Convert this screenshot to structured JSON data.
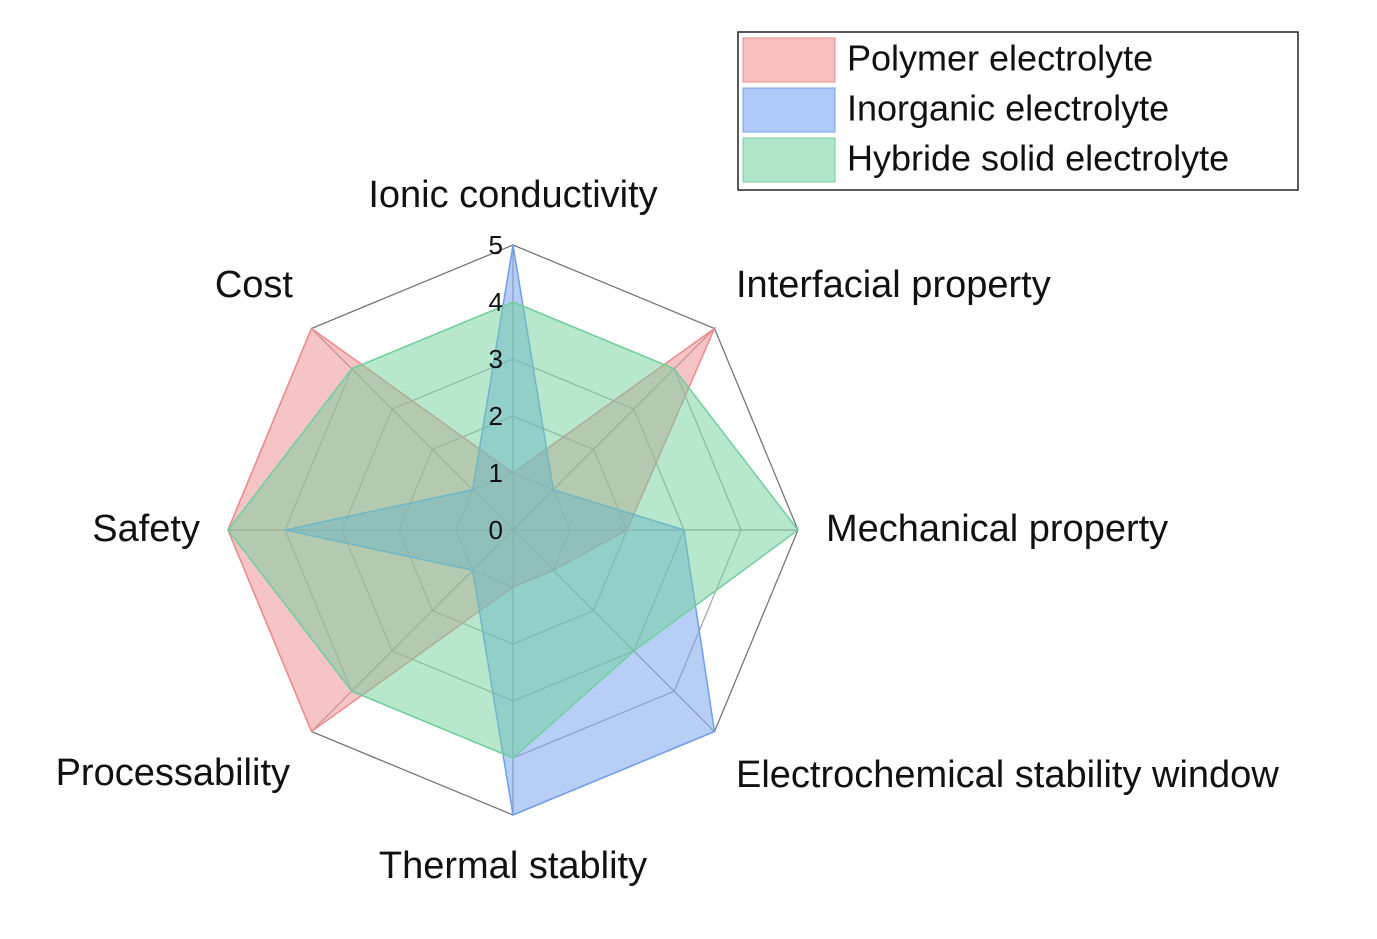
{
  "chart_data": {
    "type": "radar",
    "categories": [
      "Ionic conductivity",
      "Interfacial property",
      "Mechanical property",
      "Electrochemical stability window",
      "Thermal stablity",
      "Processability",
      "Safety",
      "Cost"
    ],
    "series": [
      {
        "name": "Polymer electrolyte",
        "color": "#ef8a8c",
        "values": [
          1,
          5,
          2,
          1,
          1,
          5,
          5,
          5
        ]
      },
      {
        "name": "Inorganic electrolyte",
        "color": "#6f9ef0",
        "values": [
          5,
          1,
          3,
          5,
          5,
          1,
          4,
          1
        ]
      },
      {
        "name": "Hybride solid electrolyte",
        "color": "#6fd09c",
        "values": [
          4,
          4,
          5,
          3,
          4,
          4,
          5,
          4
        ]
      }
    ],
    "ylim": [
      0,
      5
    ],
    "yticks": [
      0,
      1,
      2,
      3,
      4,
      5
    ],
    "grid": true,
    "legend": "top-right"
  }
}
